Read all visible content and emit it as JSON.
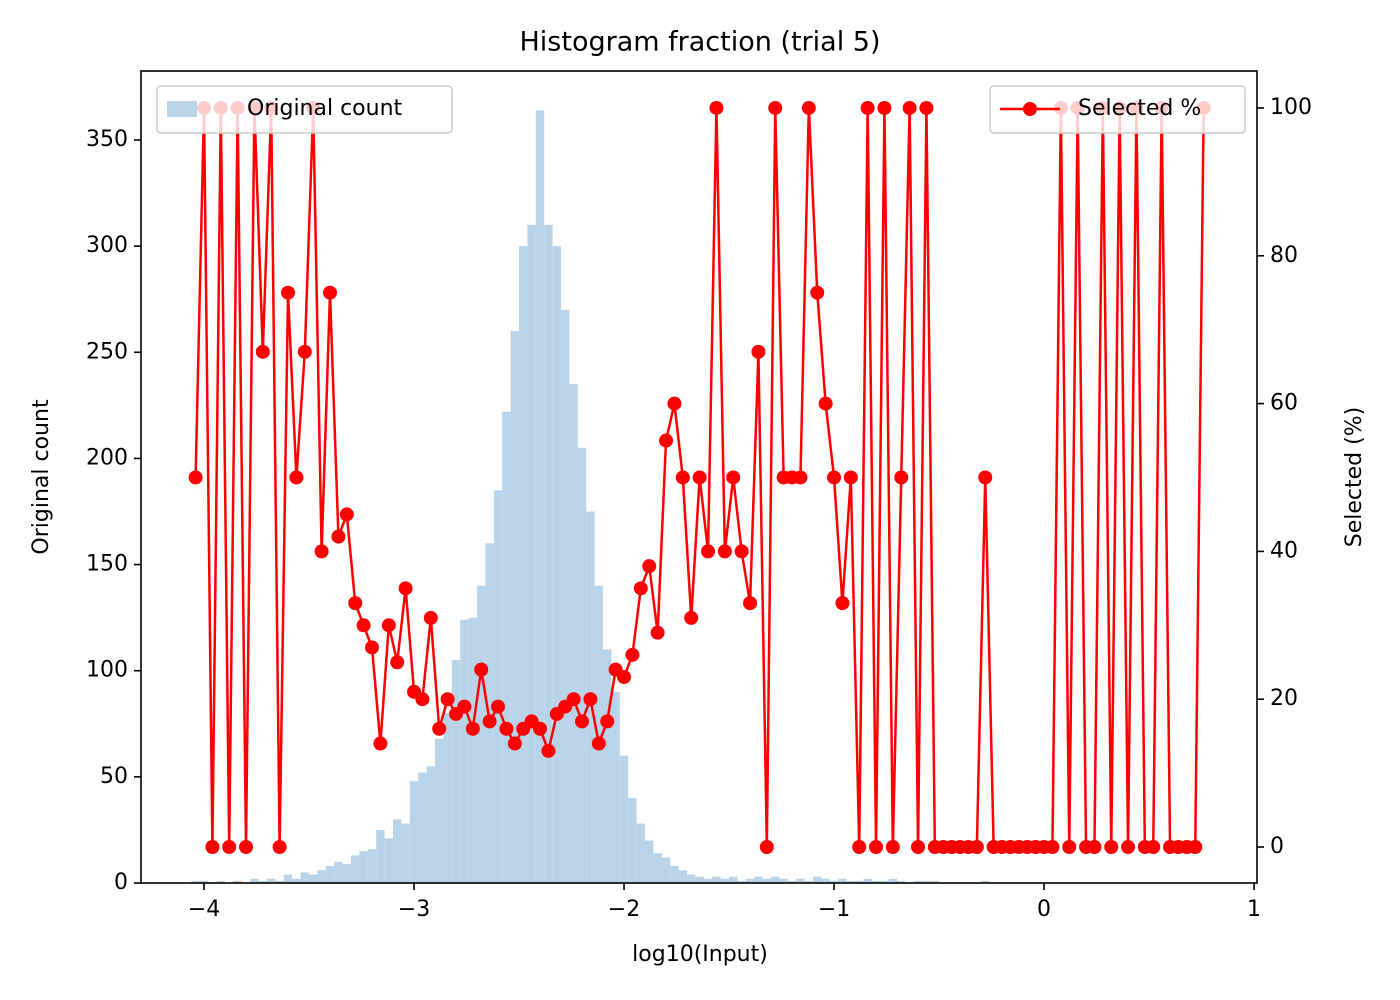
{
  "chart_data": {
    "type": "histogram",
    "title": "Histogram fraction (trial 5)",
    "xlabel": "log10(Input)",
    "ylabel": "Original count",
    "y2label": "Selected (%)",
    "xlim": [
      -4.3,
      1.014
    ],
    "xticks": [
      {
        "value": -4,
        "label": "−4"
      },
      {
        "value": -3,
        "label": "−3"
      },
      {
        "value": -2,
        "label": "−2"
      },
      {
        "value": -1,
        "label": "−1"
      },
      0,
      1
    ],
    "ylim": [
      0,
      382.5
    ],
    "yticks": [
      0,
      50,
      100,
      150,
      200,
      250,
      300,
      350
    ],
    "y2lim": [
      -4.87,
      105
    ],
    "y2ticks": [
      0,
      20,
      40,
      60,
      80,
      100
    ],
    "bins": [
      -4.06,
      -4.02,
      -3.98,
      -3.94,
      -3.9,
      -3.86,
      -3.82,
      -3.78,
      -3.74,
      -3.7,
      -3.66,
      -3.62,
      -3.58,
      -3.54,
      -3.5,
      -3.46,
      -3.42,
      -3.38,
      -3.34,
      -3.3,
      -3.26,
      -3.22,
      -3.18,
      -3.14,
      -3.1,
      -3.06,
      -3.02,
      -2.98,
      -2.94,
      -2.9,
      -2.86,
      -2.82,
      -2.78,
      -2.74,
      -2.7,
      -2.66,
      -2.62,
      -2.58,
      -2.54,
      -2.5,
      -2.46,
      -2.42,
      -2.38,
      -2.34,
      -2.3,
      -2.26,
      -2.22,
      -2.18,
      -2.14,
      -2.1,
      -2.06,
      -2.02,
      -1.98,
      -1.94,
      -1.9,
      -1.86,
      -1.82,
      -1.78,
      -1.74,
      -1.7,
      -1.66,
      -1.62,
      -1.58,
      -1.54,
      -1.5,
      -1.46,
      -1.42,
      -1.38,
      -1.34,
      -1.3,
      -1.26,
      -1.22,
      -1.18,
      -1.14,
      -1.1,
      -1.06,
      -1.02,
      -0.98,
      -0.94,
      -0.9,
      -0.86,
      -0.82,
      -0.78,
      -0.74,
      -0.7,
      -0.66,
      -0.62,
      -0.58,
      -0.54,
      -0.5,
      -0.46,
      -0.42,
      -0.38,
      -0.34,
      -0.3,
      -0.26,
      -0.22,
      -0.18,
      -0.14,
      -0.1,
      -0.06,
      -0.02,
      0.02,
      0.06,
      0.1,
      0.14,
      0.18,
      0.22,
      0.26,
      0.3,
      0.34,
      0.38,
      0.42,
      0.46,
      0.5,
      0.54,
      0.58,
      0.62,
      0.66,
      0.7,
      0.74,
      0.78
    ],
    "histogram": {
      "name": "Original count",
      "color": "#b9d4e8",
      "legend": "upper left",
      "counts": [
        1,
        1,
        0,
        1,
        0,
        1,
        0,
        2,
        1,
        2,
        1,
        4,
        2,
        5,
        4,
        6,
        8,
        10,
        9,
        13,
        15,
        16,
        25,
        21,
        30,
        28,
        48,
        52,
        55,
        68,
        80,
        105,
        124,
        125,
        140,
        160,
        185,
        222,
        260,
        300,
        310,
        364,
        310,
        300,
        270,
        235,
        205,
        175,
        140,
        110,
        90,
        60,
        40,
        28,
        20,
        14,
        12,
        8,
        6,
        4,
        3,
        2,
        3,
        2,
        3,
        1,
        2,
        3,
        2,
        3,
        2,
        1,
        2,
        1,
        3,
        2,
        1,
        2,
        1,
        1,
        2,
        1,
        1,
        2,
        1,
        0,
        1,
        1,
        1,
        0,
        0,
        0,
        0,
        0,
        1,
        0,
        0,
        0,
        0,
        0,
        0,
        0,
        0,
        0,
        0,
        0,
        0,
        0,
        0,
        0,
        0,
        0,
        0,
        0,
        0,
        0,
        0,
        0,
        0,
        0,
        0
      ]
    },
    "series": [
      {
        "name": "Selected %",
        "color": "#ff0000",
        "axis": "y2",
        "legend": "upper right",
        "x": [
          -4.04,
          -4.0,
          -3.96,
          -3.92,
          -3.88,
          -3.84,
          -3.8,
          -3.76,
          -3.72,
          -3.68,
          -3.64,
          -3.6,
          -3.56,
          -3.52,
          -3.48,
          -3.44,
          -3.4,
          -3.36,
          -3.32,
          -3.28,
          -3.24,
          -3.2,
          -3.16,
          -3.12,
          -3.08,
          -3.04,
          -3.0,
          -2.96,
          -2.92,
          -2.88,
          -2.84,
          -2.8,
          -2.76,
          -2.72,
          -2.68,
          -2.64,
          -2.6,
          -2.56,
          -2.52,
          -2.48,
          -2.44,
          -2.4,
          -2.36,
          -2.32,
          -2.28,
          -2.24,
          -2.2,
          -2.16,
          -2.12,
          -2.08,
          -2.04,
          -2.0,
          -1.96,
          -1.92,
          -1.88,
          -1.84,
          -1.8,
          -1.76,
          -1.72,
          -1.68,
          -1.64,
          -1.6,
          -1.56,
          -1.52,
          -1.48,
          -1.44,
          -1.4,
          -1.36,
          -1.32,
          -1.28,
          -1.24,
          -1.2,
          -1.16,
          -1.12,
          -1.08,
          -1.04,
          -1.0,
          -0.96,
          -0.92,
          -0.88,
          -0.84,
          -0.8,
          -0.76,
          -0.72,
          -0.68,
          -0.64,
          -0.6,
          -0.56,
          -0.52,
          -0.48,
          -0.44,
          -0.4,
          -0.36,
          -0.32,
          -0.28,
          -0.24,
          -0.2,
          -0.16,
          -0.12,
          -0.08,
          -0.04,
          0,
          0.04,
          0.08,
          0.12,
          0.16,
          0.2,
          0.24,
          0.28,
          0.32,
          0.36,
          0.4,
          0.44,
          0.48,
          0.52,
          0.56,
          0.6,
          0.64,
          0.68,
          0.72,
          0.76
        ],
        "values": [
          50,
          100,
          0,
          100,
          0,
          100,
          0,
          100,
          67,
          100,
          0,
          75,
          50,
          67,
          100,
          40,
          75,
          42,
          45,
          33,
          30,
          27,
          14,
          30,
          25,
          35,
          21,
          20,
          31,
          16,
          20,
          18,
          19,
          16,
          24,
          17,
          19,
          16,
          14,
          16,
          17,
          16,
          13,
          18,
          19,
          20,
          17,
          20,
          14,
          17,
          24,
          23,
          26,
          35,
          38,
          29,
          55,
          60,
          50,
          31,
          50,
          40,
          100,
          40,
          50,
          40,
          33,
          67,
          0,
          100,
          50,
          50,
          50,
          100,
          75,
          60,
          50,
          33,
          50,
          0,
          100,
          0,
          100,
          0,
          50,
          100,
          0,
          100,
          0,
          0,
          0,
          0,
          0,
          0,
          50,
          0,
          0,
          0,
          0,
          0,
          0,
          0,
          0,
          100,
          0,
          100,
          0,
          0,
          100,
          0,
          100,
          0,
          100,
          0,
          0,
          100,
          0,
          0,
          0,
          0,
          100
        ]
      }
    ]
  }
}
